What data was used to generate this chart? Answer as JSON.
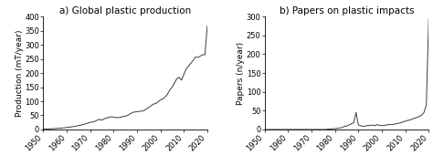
{
  "title_a": "a) Global plastic production",
  "title_b": "b) Papers on plastic impacts",
  "ylabel_a": "Production (mT/year)",
  "ylabel_b": "Papers (n/year)",
  "xlim": [
    1950,
    2020
  ],
  "ylim_a": [
    0,
    400
  ],
  "ylim_b": [
    0,
    300
  ],
  "yticks_a": [
    0,
    50,
    100,
    150,
    200,
    250,
    300,
    350,
    400
  ],
  "yticks_b": [
    0,
    50,
    100,
    150,
    200,
    250,
    300
  ],
  "xticks": [
    1950,
    1960,
    1970,
    1980,
    1990,
    2000,
    2010,
    2020
  ],
  "plastic_production": {
    "years": [
      1950,
      1951,
      1952,
      1953,
      1954,
      1955,
      1956,
      1957,
      1958,
      1959,
      1960,
      1961,
      1962,
      1963,
      1964,
      1965,
      1966,
      1967,
      1968,
      1969,
      1970,
      1971,
      1972,
      1973,
      1974,
      1975,
      1976,
      1977,
      1978,
      1979,
      1980,
      1981,
      1982,
      1983,
      1984,
      1985,
      1986,
      1987,
      1988,
      1989,
      1990,
      1991,
      1992,
      1993,
      1994,
      1995,
      1996,
      1997,
      1998,
      1999,
      2000,
      2001,
      2002,
      2003,
      2004,
      2005,
      2006,
      2007,
      2008,
      2009,
      2010,
      2011,
      2012,
      2013,
      2014,
      2015,
      2016,
      2017,
      2018,
      2019,
      2020
    ],
    "values": [
      1.5,
      1.7,
      2.0,
      2.3,
      2.7,
      3.2,
      3.8,
      4.5,
      5.2,
      6.0,
      7.0,
      8.0,
      9.2,
      10.5,
      12.0,
      13.8,
      15.5,
      17.5,
      20.0,
      22.5,
      25.0,
      26.5,
      29.0,
      33.0,
      36.0,
      33.0,
      38.0,
      40.0,
      43.0,
      45.0,
      44.0,
      42.0,
      42.0,
      43.5,
      46.0,
      47.0,
      50.0,
      55.0,
      60.0,
      62.0,
      63.0,
      64.0,
      65.0,
      67.0,
      73.0,
      78.0,
      84.0,
      90.0,
      92.0,
      98.0,
      105.0,
      108.0,
      115.0,
      125.0,
      140.0,
      150.0,
      165.0,
      180.0,
      185.0,
      175.0,
      195.0,
      215.0,
      225.0,
      235.0,
      245.0,
      257.0,
      255.0,
      260.0,
      265.0,
      265.0,
      367.0
    ]
  },
  "papers": {
    "years": [
      1950,
      1951,
      1952,
      1953,
      1954,
      1955,
      1956,
      1957,
      1958,
      1959,
      1960,
      1961,
      1962,
      1963,
      1964,
      1965,
      1966,
      1967,
      1968,
      1969,
      1970,
      1971,
      1972,
      1973,
      1974,
      1975,
      1976,
      1977,
      1978,
      1979,
      1980,
      1981,
      1982,
      1983,
      1984,
      1985,
      1986,
      1987,
      1988,
      1989,
      1990,
      1991,
      1992,
      1993,
      1994,
      1995,
      1996,
      1997,
      1998,
      1999,
      2000,
      2001,
      2002,
      2003,
      2004,
      2005,
      2006,
      2007,
      2008,
      2009,
      2010,
      2011,
      2012,
      2013,
      2014,
      2015,
      2016,
      2017,
      2018,
      2019,
      2020
    ],
    "values": [
      0,
      0,
      0,
      0,
      0,
      0,
      0,
      0,
      0,
      0,
      0,
      0,
      0,
      0,
      0,
      0,
      0,
      0,
      0,
      0,
      0,
      0,
      0,
      0,
      0,
      0,
      0,
      1,
      1,
      2,
      2,
      3,
      4,
      5,
      8,
      9,
      12,
      15,
      18,
      45,
      12,
      10,
      8,
      9,
      11,
      10,
      12,
      10,
      13,
      11,
      10,
      11,
      12,
      13,
      13,
      14,
      15,
      16,
      18,
      20,
      22,
      24,
      25,
      28,
      30,
      32,
      35,
      38,
      45,
      65,
      295
    ]
  },
  "line_color": "#3a3a3a",
  "bg_color": "#ffffff",
  "tick_label_fontsize": 6,
  "title_fontsize": 7.5,
  "ylabel_fontsize": 6.5
}
